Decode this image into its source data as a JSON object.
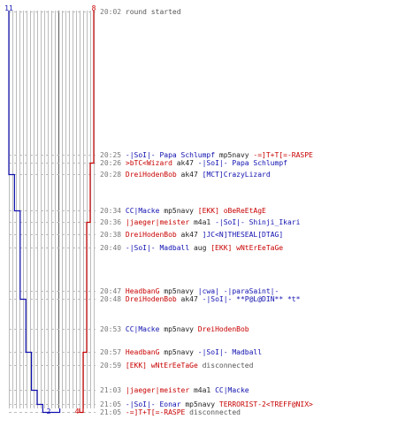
{
  "chart_data": {
    "type": "line",
    "title": "",
    "xlabel": "",
    "ylabel": "",
    "grid": true,
    "colors": {
      "blue": "#1010b0",
      "red": "#c80000",
      "grid": "#bbbbbb",
      "dash": "#bbbbbb",
      "time": "#777777",
      "neutral": "#555555",
      "weapon": "#222222"
    },
    "team_counts": {
      "blue_start": "11",
      "red_start": "8",
      "blue_end": "2",
      "red_end": "4"
    },
    "series": [
      {
        "team": "blue",
        "alive": [
          11,
          11,
          11,
          10,
          9,
          9,
          9,
          9,
          9,
          8,
          8,
          7,
          7,
          6,
          5,
          5,
          4,
          4,
          3,
          3,
          2
        ]
      },
      {
        "team": "red",
        "alive": [
          8,
          8,
          7,
          7,
          7,
          6,
          6,
          6,
          6,
          6,
          6,
          5,
          5,
          5,
          5,
          5,
          5,
          4,
          4,
          4,
          4
        ]
      }
    ],
    "events": [
      {
        "time": "20:02",
        "msg": "round started"
      },
      {
        "time": "20:25",
        "killer": "-|SoI|- Papa Schlumpf",
        "kteam": "blue",
        "weapon": "mp5navy",
        "victim": "-=]T+T[=-RASPE",
        "vteam": "red"
      },
      {
        "time": "20:26",
        "killer": ">bTC<Wizard",
        "kteam": "red",
        "weapon": "ak47",
        "victim": "-|SoI|- Papa Schlumpf",
        "vteam": "blue"
      },
      {
        "time": "20:28",
        "killer": "DreiHodenBob",
        "kteam": "red",
        "weapon": "ak47",
        "victim": "[MCT]CrazyLizard",
        "vteam": "blue"
      },
      {
        "time": "20:34",
        "killer": "CC|Macke",
        "kteam": "blue",
        "weapon": "mp5navy",
        "victim": "[EKK] oBeReEtAgE",
        "vteam": "red"
      },
      {
        "time": "20:36",
        "killer": "|jaeger|meister",
        "kteam": "red",
        "weapon": "m4a1",
        "victim": "-|SoI|- Shinji_Ikari",
        "vteam": "blue"
      },
      {
        "time": "20:38",
        "killer": "DreiHodenBob",
        "kteam": "red",
        "weapon": "ak47",
        "victim": "]JC<N]THESEAL[DTAG]",
        "vteam": "blue"
      },
      {
        "time": "20:40",
        "killer": "-|SoI|- Madball",
        "kteam": "blue",
        "weapon": "aug",
        "victim": "[EKK] wNtErEeTaGe",
        "vteam": "red"
      },
      {
        "time": "20:47",
        "killer": "HeadbanG",
        "kteam": "red",
        "weapon": "mp5navy",
        "victim": "|cwa| -|paraSaint|-",
        "vteam": "blue"
      },
      {
        "time": "20:48",
        "killer": "DreiHodenBob",
        "kteam": "red",
        "weapon": "ak47",
        "victim": "-|SoI|- **P@L@DIN** *t*",
        "vteam": "blue"
      },
      {
        "time": "20:53",
        "killer": "CC|Macke",
        "kteam": "blue",
        "weapon": "mp5navy",
        "victim": "DreiHodenBob",
        "vteam": "red"
      },
      {
        "time": "20:57",
        "killer": "HeadbanG",
        "kteam": "red",
        "weapon": "mp5navy",
        "victim": "-|SoI|- Madball",
        "vteam": "blue"
      },
      {
        "time": "20:59",
        "killer": "[EKK] wNtErEeTaGe",
        "kteam": "red",
        "msg": "disconnected"
      },
      {
        "time": "21:03",
        "killer": "|jaeger|meister",
        "kteam": "red",
        "weapon": "m4a1",
        "victim": "CC|Macke",
        "vteam": "blue"
      },
      {
        "time": "21:05",
        "killer": "-|SoI|- Eonar",
        "kteam": "blue",
        "weapon": "mp5navy",
        "victim": "TERRORIST-2<TREFF@NIX>",
        "vteam": "red"
      },
      {
        "time": "21:05",
        "killer": "-=]T+T[=-RASPE",
        "kteam": "red",
        "msg": "disconnected"
      }
    ]
  }
}
